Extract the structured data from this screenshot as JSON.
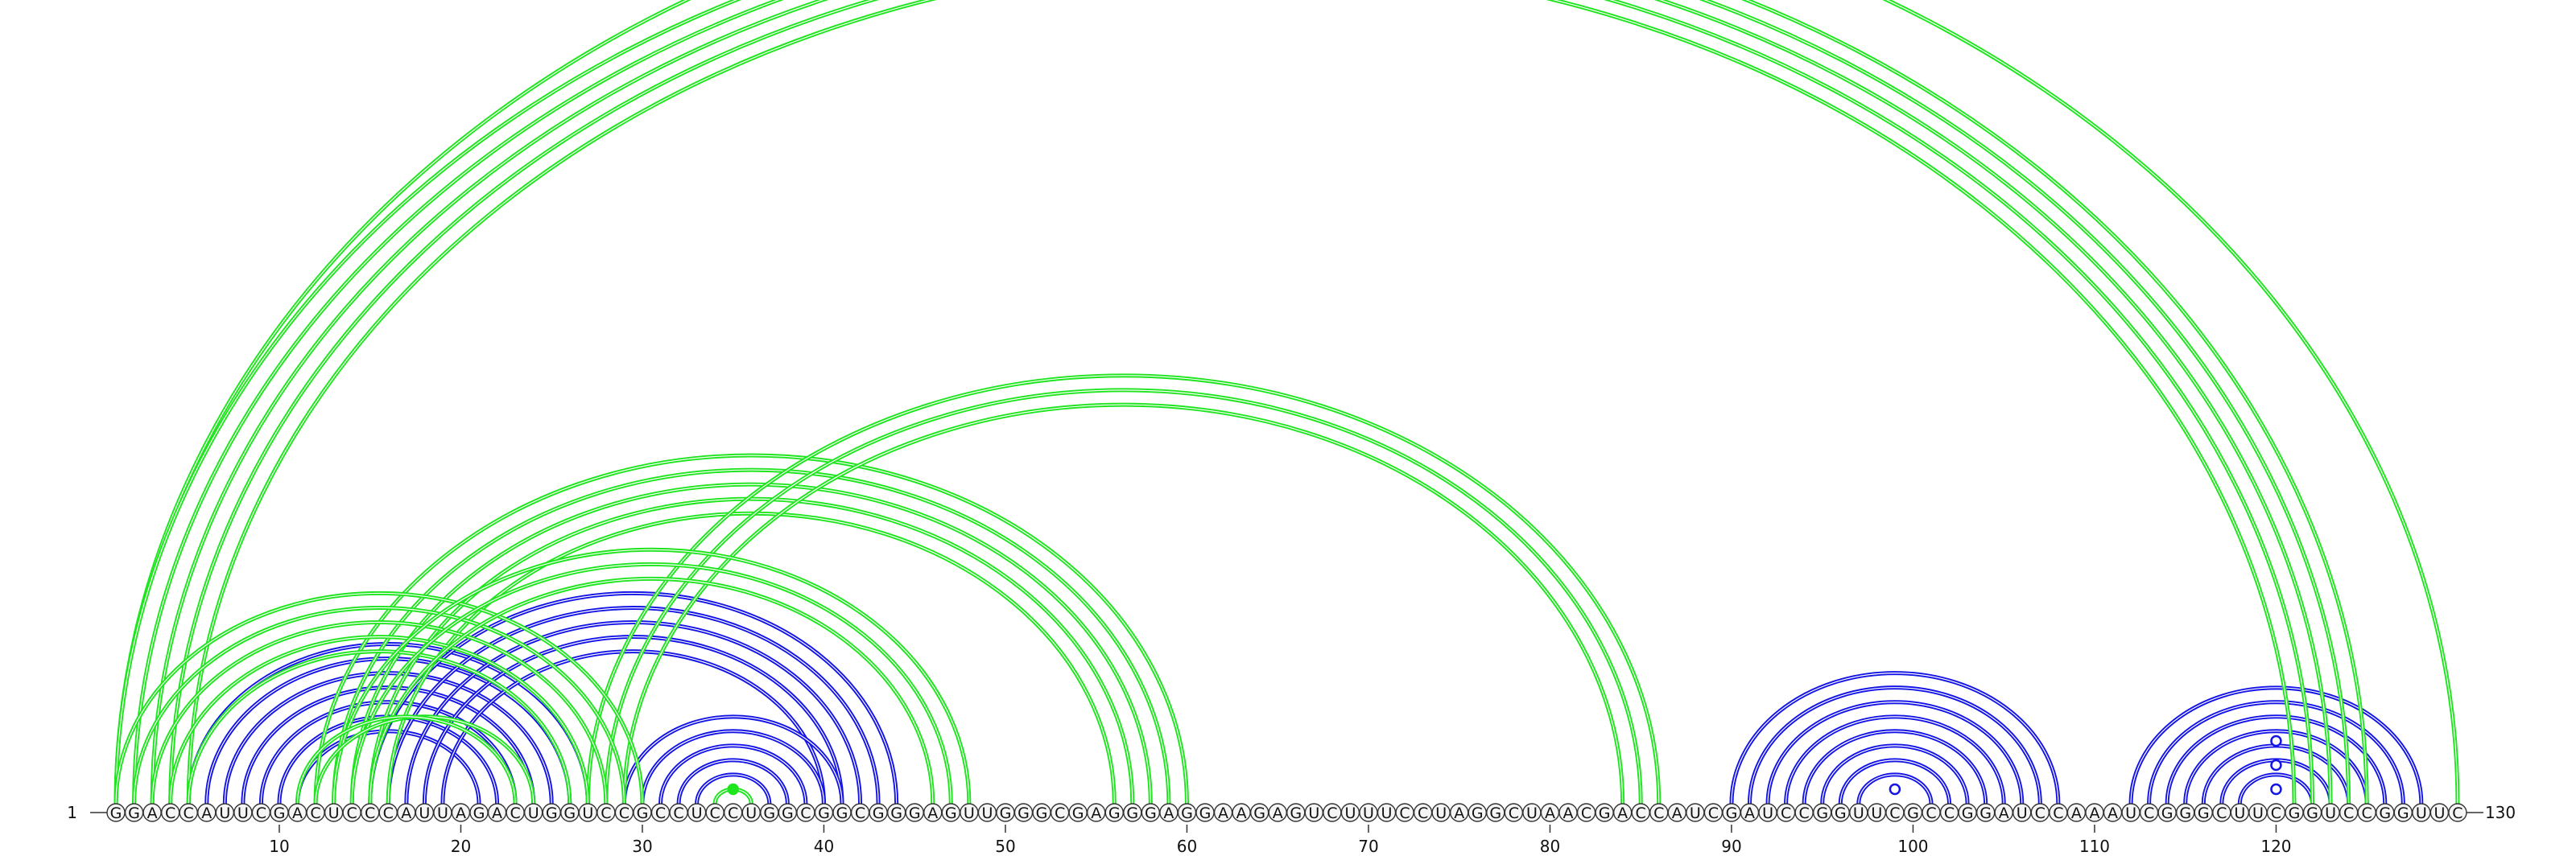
{
  "sequence": "GGACCAUUCGACUCCCAUUAGACUGGUCCGCCUCCUGGCGGCGGGAGUUGGGCGAGGGAGGAAGAGUCUUUCCUAGGCUAACGACCAUCGAUCCGGUUCGCCGGAUCCAAAUCGGGCUUCGGUCCGGUUC",
  "start_label": "1",
  "end_label": "130",
  "tick_labels": [
    "10",
    "20",
    "30",
    "40",
    "50",
    "60",
    "70",
    "80",
    "90",
    "100",
    "110",
    "120"
  ],
  "colors": {
    "green": "#1ee51e",
    "blue": "#1414e6",
    "marker_fill": "#ffffff"
  },
  "green_pairs": [
    [
      1,
      130
    ],
    [
      1,
      125
    ],
    [
      2,
      124
    ],
    [
      3,
      123
    ],
    [
      4,
      122
    ],
    [
      5,
      121
    ],
    [
      12,
      60
    ],
    [
      13,
      59
    ],
    [
      14,
      58
    ],
    [
      15,
      57
    ],
    [
      16,
      56
    ],
    [
      27,
      86
    ],
    [
      28,
      85
    ],
    [
      29,
      84
    ],
    [
      1,
      30
    ],
    [
      2,
      29
    ],
    [
      3,
      28
    ],
    [
      4,
      27
    ],
    [
      5,
      26
    ],
    [
      13,
      48
    ],
    [
      14,
      47
    ],
    [
      15,
      46
    ],
    [
      12,
      24
    ],
    [
      11,
      23
    ],
    [
      34,
      36
    ]
  ],
  "blue_pairs": [
    [
      5,
      27
    ],
    [
      6,
      26
    ],
    [
      7,
      25
    ],
    [
      8,
      24
    ],
    [
      9,
      23
    ],
    [
      10,
      22
    ],
    [
      11,
      21
    ],
    [
      15,
      44
    ],
    [
      16,
      43
    ],
    [
      17,
      42
    ],
    [
      18,
      41
    ],
    [
      19,
      40
    ],
    [
      29,
      41
    ],
    [
      30,
      40
    ],
    [
      31,
      39
    ],
    [
      32,
      38
    ],
    [
      33,
      37
    ],
    [
      90,
      108
    ],
    [
      91,
      107
    ],
    [
      92,
      106
    ],
    [
      93,
      105
    ],
    [
      94,
      104
    ],
    [
      95,
      103
    ],
    [
      96,
      102
    ],
    [
      97,
      101
    ],
    [
      112,
      128
    ],
    [
      113,
      127
    ],
    [
      114,
      126
    ],
    [
      115,
      125
    ],
    [
      116,
      124
    ],
    [
      117,
      123
    ],
    [
      118,
      122
    ]
  ],
  "markers": [
    {
      "pos": 35,
      "row": 0,
      "color": "green",
      "filled": true
    },
    {
      "pos": 99,
      "row": 0,
      "color": "blue",
      "filled": false
    },
    {
      "pos": 120,
      "row": 0,
      "color": "blue",
      "filled": false
    },
    {
      "pos": 120,
      "row": 1,
      "color": "blue",
      "filled": false
    },
    {
      "pos": 120,
      "row": 2,
      "color": "blue",
      "filled": false
    }
  ]
}
